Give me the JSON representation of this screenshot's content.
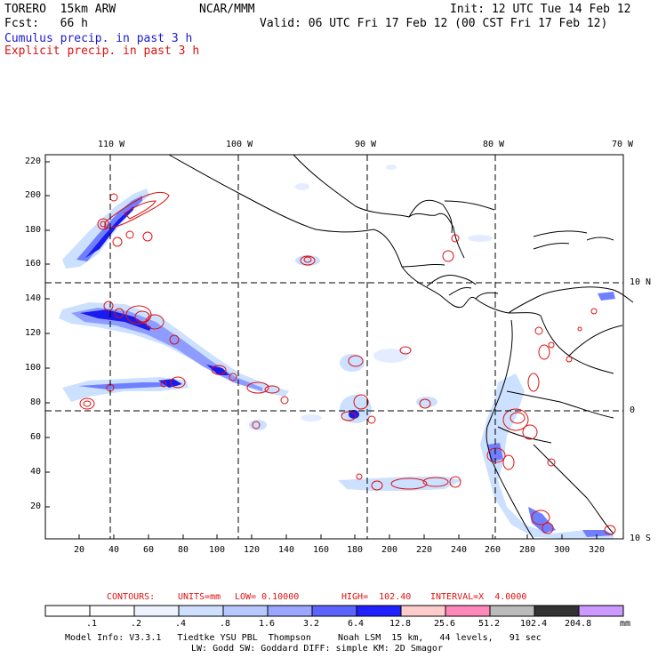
{
  "header": {
    "model": "TORERO  15km ARW",
    "org": "NCAR/MMM",
    "init": "Init: 12 UTC Tue 14 Feb 12",
    "fcst": "Fcst:   66 h",
    "valid": "Valid: 06 UTC Fri 17 Feb 12 (00 CST Fri 17 Feb 12)",
    "legend_cumulus": "Cumulus precip. in past 3 h",
    "legend_explicit": "Explicit precip. in past 3 h"
  },
  "map": {
    "lon_labels": [
      "110 W",
      "100 W",
      "90 W",
      "80 W",
      "70 W"
    ],
    "lat_labels": [
      "10 N",
      "0",
      "10 S"
    ],
    "y_ticks": [
      "220",
      "200",
      "180",
      "160",
      "140",
      "120",
      "100",
      "80",
      "60",
      "40",
      "20"
    ],
    "x_ticks": [
      "20",
      "40",
      "60",
      "80",
      "100",
      "120",
      "140",
      "160",
      "180",
      "200",
      "220",
      "240",
      "260",
      "280",
      "300",
      "320"
    ],
    "colors": {
      "light_blue": "#cce0ff",
      "mid_blue": "#6f7fff",
      "dark_blue": "#1a1aee",
      "red": "#dd1111"
    }
  },
  "contours": {
    "label": "CONTOURS:",
    "units": "UNITS=mm",
    "low": "LOW= 0.10000",
    "high": "HIGH=  102.40",
    "interval": "INTERVAL=X  4.0000"
  },
  "colorbar": {
    "labels": [
      ".1",
      ".2",
      ".4",
      ".8",
      "1.6",
      "3.2",
      "6.4",
      "12.8",
      "25.6",
      "51.2",
      "102.4",
      "204.8"
    ],
    "unit": "mm",
    "colors": [
      "#ffffff",
      "#ffffff",
      "#eef4ff",
      "#cfe0ff",
      "#b8c8ff",
      "#9aa6ff",
      "#5c64ff",
      "#2020ff",
      "#ffcccc",
      "#ff88bb",
      "#bbbbbb",
      "#333333",
      "#cc99ff"
    ]
  },
  "footer": {
    "line1": "Model Info: V3.3.1   Tiedtke YSU PBL  Thompson     Noah LSM  15 km,   44 levels,   91 sec",
    "line2": "LW: Godd SW: Goddard DIFF: simple KM: 2D Smagor"
  }
}
